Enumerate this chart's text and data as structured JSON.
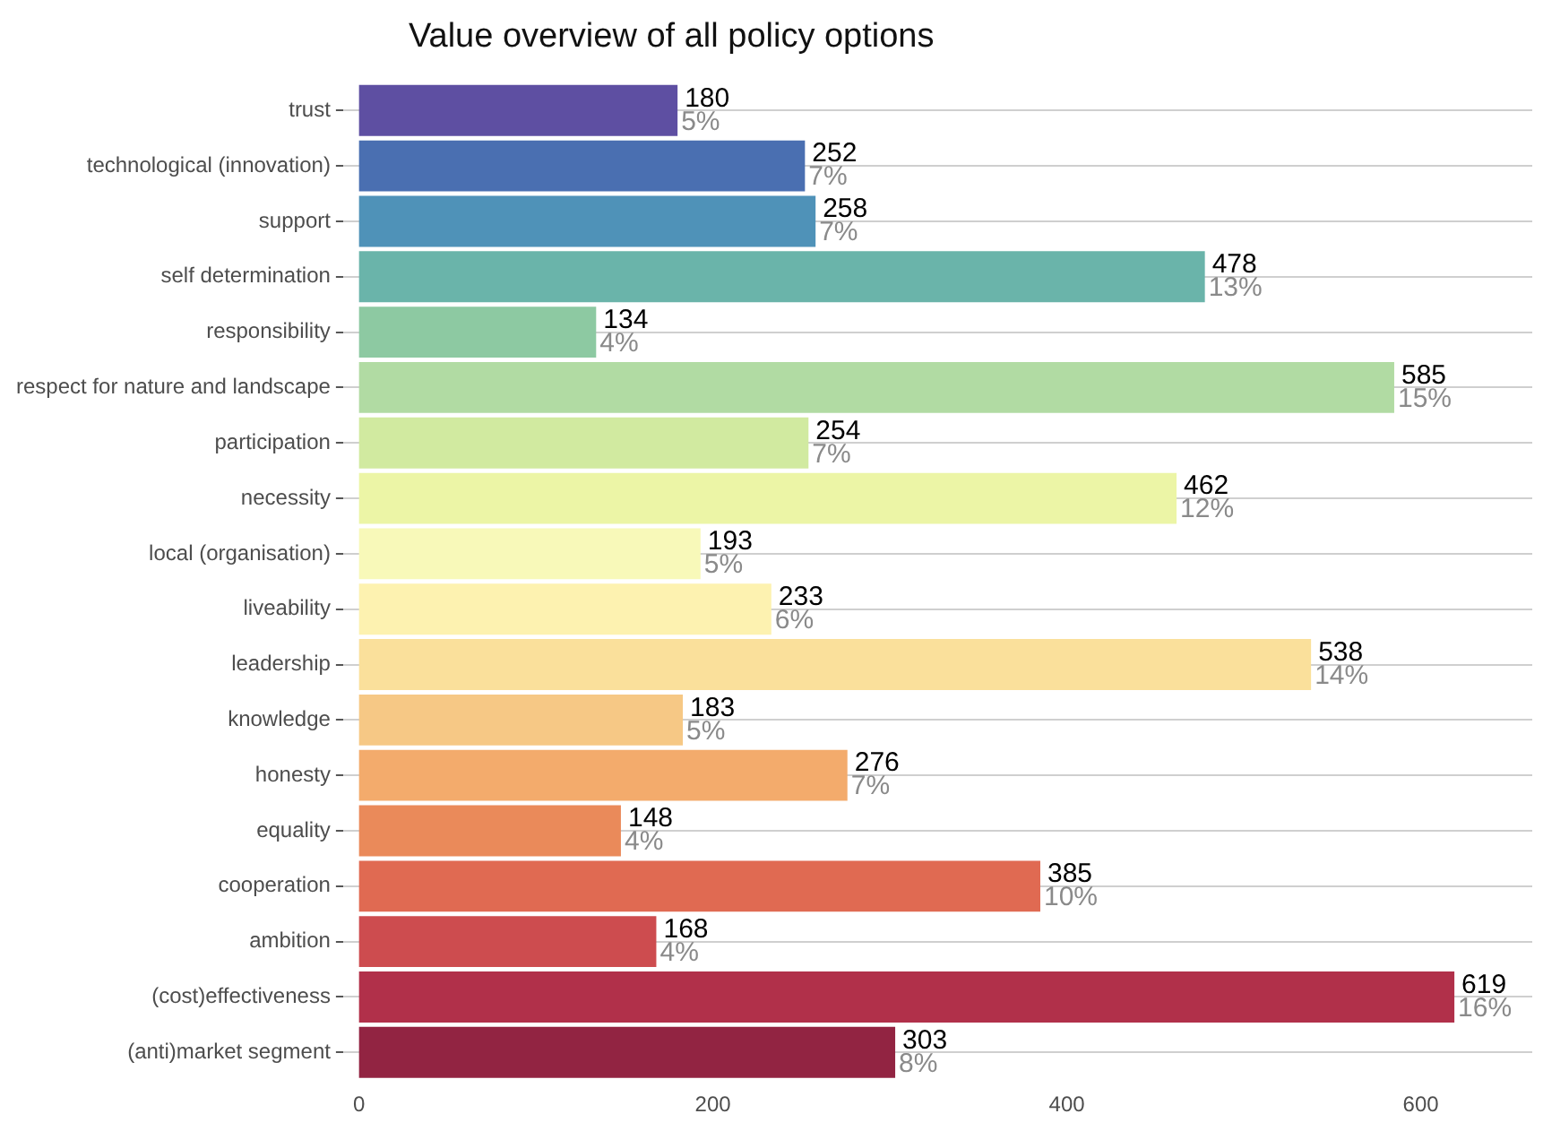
{
  "chart_data": {
    "type": "bar",
    "orientation": "horizontal",
    "title": "Value overview of all policy options",
    "categories": [
      "trust",
      "technological (innovation)",
      "support",
      "self determination",
      "responsibility",
      "respect for nature and landscape",
      "participation",
      "necessity",
      "local (organisation)",
      "liveability",
      "leadership",
      "knowledge",
      "honesty",
      "equality",
      "cooperation",
      "ambition",
      "(cost)effectiveness",
      "(anti)market segment"
    ],
    "values": [
      180,
      252,
      258,
      478,
      134,
      585,
      254,
      462,
      193,
      233,
      538,
      183,
      276,
      148,
      385,
      168,
      619,
      303
    ],
    "colors": [
      "#5e4fa2",
      "#4a6fb1",
      "#4f92b8",
      "#6ab4aa",
      "#8dc9a2",
      "#b1dba3",
      "#d1eaa0",
      "#ecf5a6",
      "#f8f9b9",
      "#fdf2b0",
      "#fae09b",
      "#f6c885",
      "#f3ab6c",
      "#ea8a5a",
      "#e06a52",
      "#cd4c4f",
      "#b1304a",
      "#922442"
    ],
    "data_labels": true,
    "annotations": [
      {
        "text": "5%",
        "x": 180,
        "y": "trust"
      },
      {
        "text": "7%",
        "x": 252,
        "y": "technological (innovation)"
      },
      {
        "text": "7%",
        "x": 258,
        "y": "support"
      },
      {
        "text": "13%",
        "x": 478,
        "y": "self determination"
      },
      {
        "text": "4%",
        "x": 134,
        "y": "responsibility"
      },
      {
        "text": "15%",
        "x": 585,
        "y": "respect for nature and landscape"
      },
      {
        "text": "7%",
        "x": 254,
        "y": "participation"
      },
      {
        "text": "12%",
        "x": 462,
        "y": "necessity"
      },
      {
        "text": "5%",
        "x": 193,
        "y": "local (organisation)"
      },
      {
        "text": "6%",
        "x": 233,
        "y": "liveability"
      },
      {
        "text": "14%",
        "x": 538,
        "y": "leadership"
      },
      {
        "text": "5%",
        "x": 183,
        "y": "knowledge"
      },
      {
        "text": "7%",
        "x": 276,
        "y": "honesty"
      },
      {
        "text": "4%",
        "x": 148,
        "y": "equality"
      },
      {
        "text": "10%",
        "x": 385,
        "y": "cooperation"
      },
      {
        "text": "4%",
        "x": 168,
        "y": "ambition"
      },
      {
        "text": "16%",
        "x": 619,
        "y": "(cost)effectiveness"
      },
      {
        "text": "8%",
        "x": 303,
        "y": "(anti)market segment"
      }
    ],
    "xlim": [
      -9,
      663
    ],
    "xticks": [
      0,
      200,
      400,
      600
    ],
    "grid": "y",
    "legend": false
  }
}
